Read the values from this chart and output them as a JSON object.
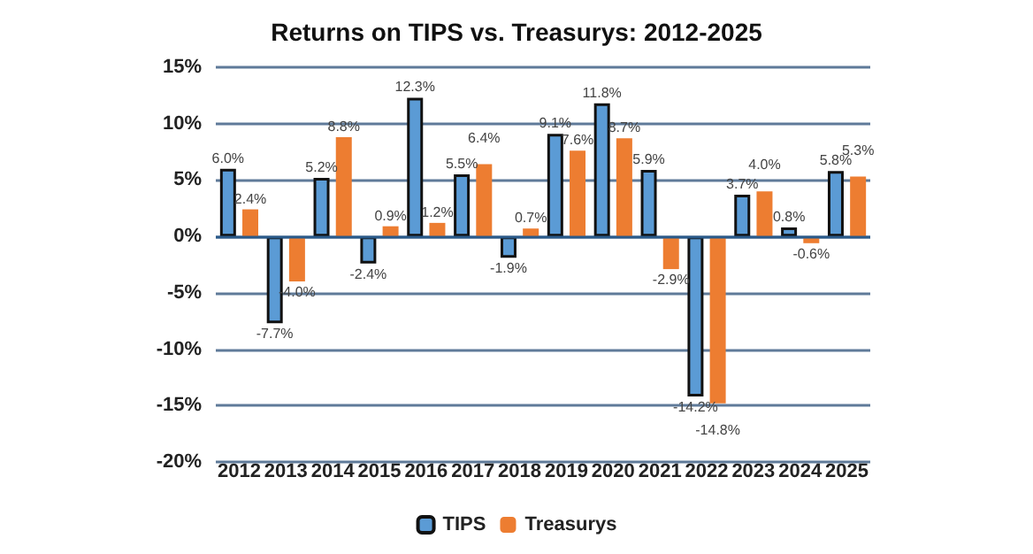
{
  "chart_data": {
    "type": "bar",
    "title": "Returns on TIPS vs. Treasurys: 2012-2025",
    "categories": [
      "2012",
      "2013",
      "2014",
      "2015",
      "2016",
      "2017",
      "2018",
      "2019",
      "2020",
      "2021",
      "2022",
      "2023",
      "2024",
      "2025"
    ],
    "series": [
      {
        "name": "TIPS",
        "color": "#5b9bd5",
        "values": [
          6.0,
          -7.7,
          5.2,
          -2.4,
          12.3,
          5.5,
          -1.9,
          9.1,
          11.8,
          5.9,
          -14.2,
          3.7,
          0.8,
          5.8
        ],
        "value_labels": [
          "6.0%",
          "-7.7%",
          "5.2%",
          "-2.4%",
          "12.3%",
          "5.5%",
          "-1.9%",
          "9.1%",
          "11.8%",
          "5.9%",
          "-14.2%",
          "3.7%",
          "0.8%",
          "5.8%"
        ]
      },
      {
        "name": "Treasurys",
        "color": "#ed7d31",
        "values": [
          2.4,
          -4.0,
          8.8,
          0.9,
          1.2,
          6.4,
          0.7,
          7.6,
          8.7,
          -2.9,
          -14.8,
          4.0,
          -0.6,
          5.3
        ],
        "value_labels": [
          "2.4%",
          "-4.0%",
          "8.8%",
          "0.9%",
          "1.2%",
          "6.4%",
          "0.7%",
          "7.6%",
          "8.7%",
          "-2.9%",
          "-14.8%",
          "4.0%",
          "-0.6%",
          "5.3%"
        ]
      }
    ],
    "ylim": [
      -20,
      15
    ],
    "yticks": [
      {
        "value": -20,
        "label": "-20%"
      },
      {
        "value": -15,
        "label": "-15%"
      },
      {
        "value": -10,
        "label": "-10%"
      },
      {
        "value": -5,
        "label": "-5%"
      },
      {
        "value": 0,
        "label": "0%"
      },
      {
        "value": 5,
        "label": "5%"
      },
      {
        "value": 10,
        "label": "10%"
      },
      {
        "value": 15,
        "label": "15%"
      }
    ],
    "ref_lines": [
      {
        "axis": "y",
        "value": 0,
        "color": "#2a5a8a"
      }
    ],
    "grid": "y",
    "legend": "bottom"
  }
}
